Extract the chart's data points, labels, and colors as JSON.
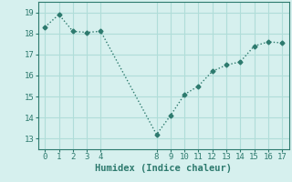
{
  "x": [
    0,
    1,
    2,
    3,
    4,
    8,
    9,
    10,
    11,
    12,
    13,
    14,
    15,
    16,
    17
  ],
  "y": [
    18.3,
    18.9,
    18.1,
    18.05,
    18.1,
    13.2,
    14.1,
    15.1,
    15.5,
    16.2,
    16.5,
    16.65,
    17.4,
    17.6,
    17.55
  ],
  "line_color": "#2d7a6e",
  "marker": "D",
  "marker_size": 2.5,
  "bg_color": "#d6f0ee",
  "grid_color": "#b0ddd9",
  "xlabel": "Humidex (Indice chaleur)",
  "xlabel_fontsize": 7.5,
  "xlim": [
    -0.5,
    17.5
  ],
  "ylim": [
    12.5,
    19.5
  ],
  "xticks": [
    0,
    1,
    2,
    3,
    4,
    8,
    9,
    10,
    11,
    12,
    13,
    14,
    15,
    16,
    17
  ],
  "yticks": [
    13,
    14,
    15,
    16,
    17,
    18,
    19
  ],
  "tick_fontsize": 6.5,
  "line_width": 1.0
}
